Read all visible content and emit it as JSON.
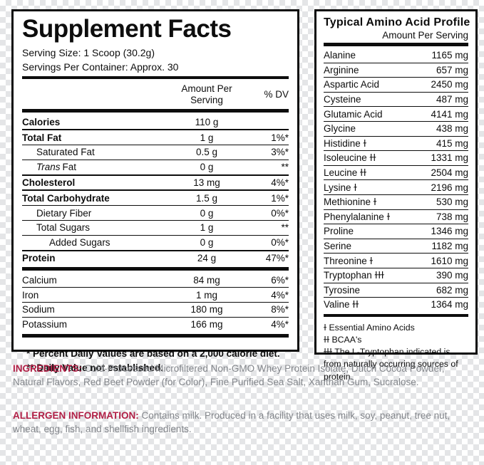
{
  "colors": {
    "accent_red": "#b01e45",
    "body_gray": "#83868b",
    "label_black": "#0d0d0d",
    "checker_dark": "#e4e5e7",
    "checker_light": "#ffffff"
  },
  "supplement_facts": {
    "title": "Supplement Facts",
    "serving_size": "Serving Size: 1 Scoop (30.2g)",
    "servings_per_container": "Servings Per Container: Approx. 30",
    "col_amount_line1": "Amount Per",
    "col_amount_line2": "Serving",
    "col_dv": "% DV",
    "rows": [
      {
        "label": "Calories",
        "amount": "110 g",
        "dv": ""
      },
      {
        "label": "Total Fat",
        "amount": "1 g",
        "dv": "1%*"
      },
      {
        "label": "Saturated Fat",
        "amount": "0.5 g",
        "dv": "3%*"
      },
      {
        "label_italic": "Trans",
        "label_rest": "Fat",
        "amount": "0 g",
        "dv": "**"
      },
      {
        "label": "Cholesterol",
        "amount": "13 mg",
        "dv": "4%*"
      },
      {
        "label": "Total Carbohydrate",
        "amount": "1.5 g",
        "dv": "1%*"
      },
      {
        "label": "Dietary Fiber",
        "amount": "0 g",
        "dv": "0%*"
      },
      {
        "label": "Total Sugars",
        "amount": "1 g",
        "dv": "**"
      },
      {
        "label": "Added Sugars",
        "amount": "0 g",
        "dv": "0%*"
      },
      {
        "label": "Protein",
        "amount": "24 g",
        "dv": "47%*"
      },
      {
        "label": "Calcium",
        "amount": "84 mg",
        "dv": "6%*"
      },
      {
        "label": "Iron",
        "amount": "1 mg",
        "dv": "4%*"
      },
      {
        "label": "Sodium",
        "amount": "180 mg",
        "dv": "8%*"
      },
      {
        "label": "Potassium",
        "amount": "166 mg",
        "dv": "4%*"
      }
    ],
    "footnotes": [
      "* Percent Daily Values are based on a 2,000 calorie diet.",
      "** Daily Value not established."
    ]
  },
  "amino_profile": {
    "title": "Typical Amino Acid Profile",
    "subtitle": "Amount Per Serving",
    "rows": [
      {
        "label": "Alanine",
        "amount": "1165 mg"
      },
      {
        "label": "Arginine",
        "amount": "657 mg"
      },
      {
        "label": "Aspartic Acid",
        "amount": "2450 mg"
      },
      {
        "label": "Cysteine",
        "amount": "487 mg"
      },
      {
        "label": "Glutamic Acid",
        "amount": "4141 mg"
      },
      {
        "label": "Glycine",
        "amount": "438 mg"
      },
      {
        "label": "Histidine ɫ",
        "amount": "415 mg"
      },
      {
        "label": "Isoleucine ɫɫ",
        "amount": "1331 mg"
      },
      {
        "label": "Leucine ɫɫ",
        "amount": "2504 mg"
      },
      {
        "label": "Lysine ɫ",
        "amount": "2196 mg"
      },
      {
        "label": "Methionine ɫ",
        "amount": "530 mg"
      },
      {
        "label": "Phenylalanine ɫ",
        "amount": "738 mg"
      },
      {
        "label": "Proline",
        "amount": "1346 mg"
      },
      {
        "label": "Serine",
        "amount": "1182 mg"
      },
      {
        "label": "Threonine ɫ",
        "amount": "1610 mg"
      },
      {
        "label": "Tryptophan ɫɫɫ",
        "amount": "390 mg"
      },
      {
        "label": "Tyrosine",
        "amount": "682 mg"
      },
      {
        "label": "Valine ɫɫ",
        "amount": "1364 mg"
      }
    ],
    "legend": [
      "ɫ Essential Amino Acids",
      "ɫɫ BCAA's",
      "ɫɫɫ The L-Tryptophan indicated is from naturally occurring sources of protein."
    ]
  },
  "ingredients": {
    "heading": "INGREDIENTS:",
    "text": " Cold-Processed Microfiltered Non-GMO Whey Protein Isolate, Dutch Cocoa Powder, Natural Flavors, Red Beet Powder (for Color), Fine Purified Sea Salt, Xanthan Gum, Sucralose."
  },
  "allergen": {
    "heading": "ALLERGEN INFORMATION:",
    "text": " Contains milk. Produced in a facility that uses milk, soy, peanut, tree nut, wheat, egg, fish, and shellfish ingredients."
  }
}
